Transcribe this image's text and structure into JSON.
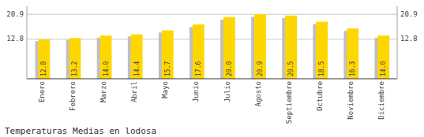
{
  "chart_data": {
    "type": "bar",
    "title": "Temperaturas Medias en lodosa",
    "categories": [
      "Enero",
      "Febrero",
      "Marzo",
      "Abril",
      "Mayo",
      "Junio",
      "Julio",
      "Agosto",
      "Septiembre",
      "Octubre",
      "Noviembre",
      "Diciembre"
    ],
    "series": [
      {
        "color": "#C0C0C0",
        "values": [
          12.2,
          12.6,
          13.3,
          13.7,
          15.0,
          16.8,
          19.2,
          20.1,
          19.7,
          17.7,
          15.5,
          13.3
        ]
      },
      {
        "color": "#FFD700",
        "values": [
          12.8,
          13.2,
          14.0,
          14.4,
          15.7,
          17.6,
          20.0,
          20.9,
          20.5,
          18.5,
          16.3,
          14.0
        ],
        "value_labels": [
          "12.8",
          "13.2",
          "14.0",
          "14.4",
          "15.7",
          "17.6",
          "20.0",
          "20.9",
          "20.5",
          "18.5",
          "16.3",
          "14.0"
        ],
        "data_labels": true
      }
    ],
    "ylim": [
      0.0,
      23.5
    ],
    "yticks": [
      12.8,
      20.9
    ],
    "grid": true
  }
}
